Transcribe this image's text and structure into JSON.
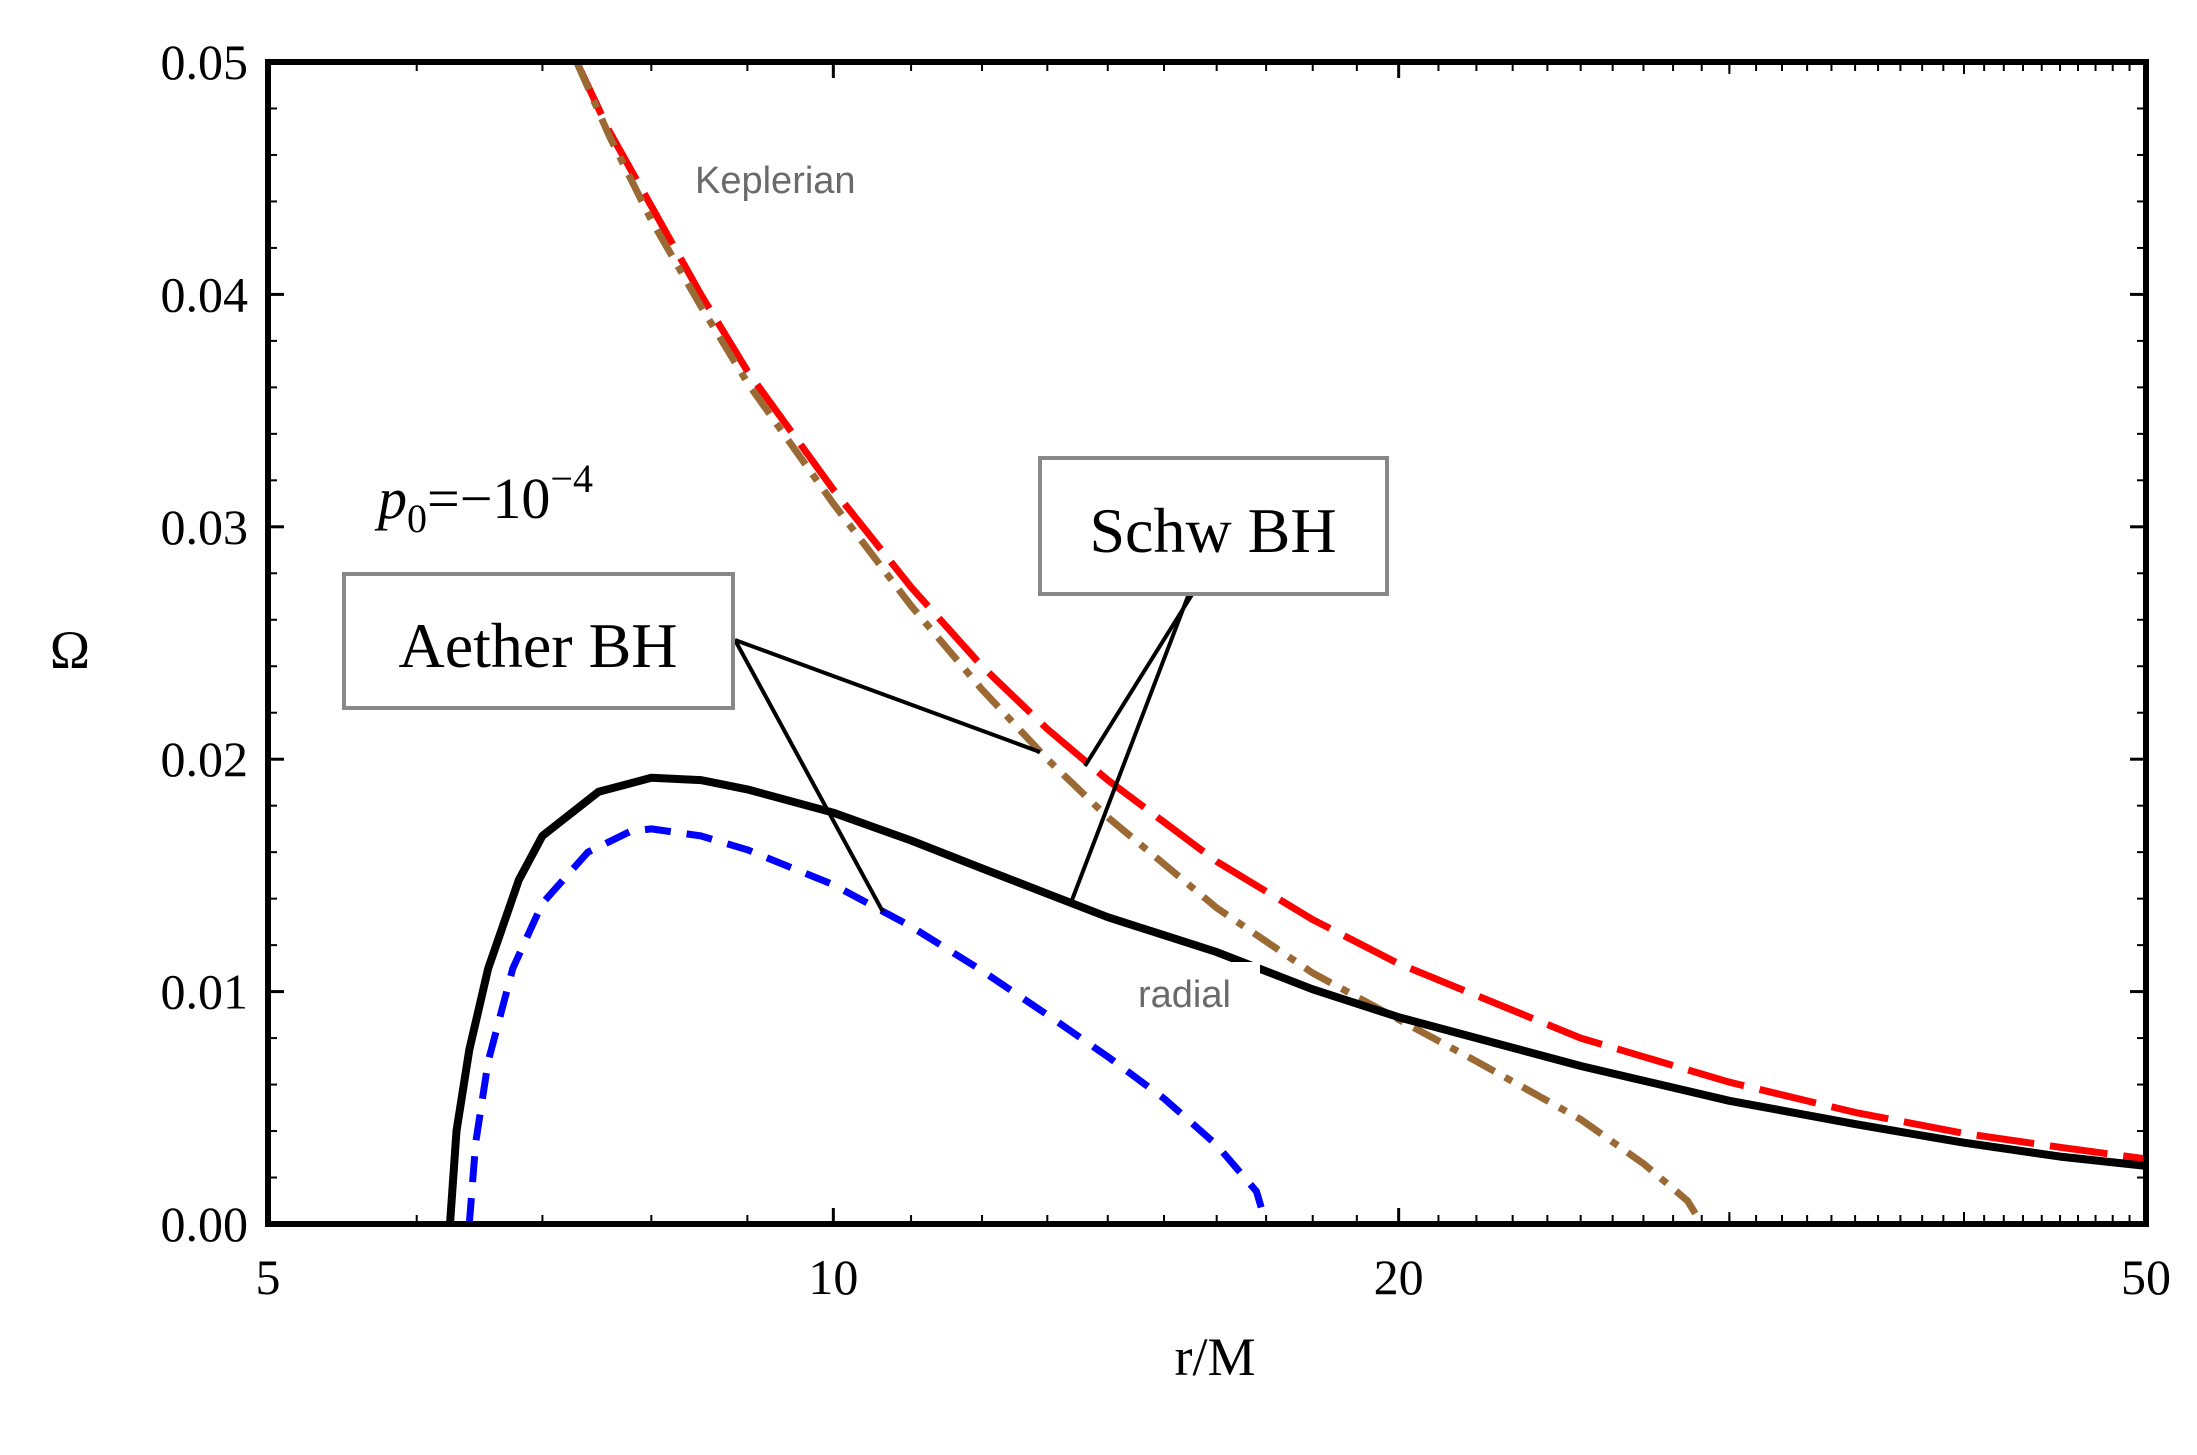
{
  "chart_data": {
    "type": "line",
    "xlabel": "r/M",
    "ylabel": "Ω",
    "xscale": "log",
    "xlim": [
      5,
      50
    ],
    "ylim": [
      0,
      0.05
    ],
    "xticks": [
      {
        "value": 5,
        "label": "5"
      },
      {
        "value": 10,
        "label": "10"
      },
      {
        "value": 20,
        "label": "20"
      },
      {
        "value": 50,
        "label": "50"
      }
    ],
    "yticks": [
      {
        "value": 0,
        "label": "0.00"
      },
      {
        "value": 0.01,
        "label": "0.01"
      },
      {
        "value": 0.02,
        "label": "0.02"
      },
      {
        "value": 0.03,
        "label": "0.03"
      },
      {
        "value": 0.04,
        "label": "0.04"
      },
      {
        "value": 0.05,
        "label": "0.05"
      }
    ],
    "grid": false,
    "series": [
      {
        "style": "long-dash",
        "color": "#ff0000",
        "points": [
          [
            7.3,
            0.05
          ],
          [
            7.6,
            0.047
          ],
          [
            8.0,
            0.0438
          ],
          [
            8.5,
            0.04
          ],
          [
            9.0,
            0.0367
          ],
          [
            10.0,
            0.0316
          ],
          [
            11.0,
            0.0274
          ],
          [
            12.0,
            0.024
          ],
          [
            13.0,
            0.0213
          ],
          [
            14.0,
            0.0191
          ],
          [
            16.0,
            0.0156
          ],
          [
            18.0,
            0.0131
          ],
          [
            20.0,
            0.0112
          ],
          [
            25.0,
            0.008
          ],
          [
            30.0,
            0.0061
          ],
          [
            35.0,
            0.0048
          ],
          [
            40.0,
            0.0039
          ],
          [
            45.0,
            0.0033
          ],
          [
            50.0,
            0.0028
          ]
        ]
      },
      {
        "style": "dash-dot",
        "color": "#9b6a34",
        "points": [
          [
            7.3,
            0.05
          ],
          [
            7.6,
            0.0468
          ],
          [
            8.0,
            0.0432
          ],
          [
            8.5,
            0.0395
          ],
          [
            9.0,
            0.0362
          ],
          [
            10.0,
            0.031
          ],
          [
            11.0,
            0.0266
          ],
          [
            12.0,
            0.023
          ],
          [
            13.0,
            0.02
          ],
          [
            14.0,
            0.0175
          ],
          [
            16.0,
            0.0136
          ],
          [
            18.0,
            0.0108
          ],
          [
            20.0,
            0.0088
          ],
          [
            22.0,
            0.007
          ],
          [
            25.0,
            0.0045
          ],
          [
            27.0,
            0.0026
          ],
          [
            28.5,
            0.001
          ],
          [
            29.0,
            0.0
          ]
        ]
      },
      {
        "style": "solid",
        "color": "#000000",
        "points": [
          [
            6.25,
            0.0
          ],
          [
            6.3,
            0.004
          ],
          [
            6.4,
            0.0075
          ],
          [
            6.55,
            0.011
          ],
          [
            6.8,
            0.0148
          ],
          [
            7.0,
            0.0167
          ],
          [
            7.5,
            0.0186
          ],
          [
            8.0,
            0.0192
          ],
          [
            8.5,
            0.0191
          ],
          [
            9.0,
            0.0187
          ],
          [
            10.0,
            0.0177
          ],
          [
            11.0,
            0.0165
          ],
          [
            12.0,
            0.0153
          ],
          [
            14.0,
            0.0132
          ],
          [
            16.0,
            0.0117
          ],
          [
            18.0,
            0.0101
          ],
          [
            20.0,
            0.0089
          ],
          [
            25.0,
            0.0068
          ],
          [
            30.0,
            0.0053
          ],
          [
            35.0,
            0.0043
          ],
          [
            40.0,
            0.0035
          ],
          [
            45.0,
            0.0029
          ],
          [
            50.0,
            0.0025
          ]
        ]
      },
      {
        "style": "short-dash",
        "color": "#0000ff",
        "points": [
          [
            6.4,
            0.0
          ],
          [
            6.45,
            0.0035
          ],
          [
            6.55,
            0.007
          ],
          [
            6.75,
            0.011
          ],
          [
            7.0,
            0.0138
          ],
          [
            7.4,
            0.016
          ],
          [
            7.8,
            0.0169
          ],
          [
            8.0,
            0.017
          ],
          [
            8.5,
            0.0167
          ],
          [
            9.0,
            0.0161
          ],
          [
            10.0,
            0.0146
          ],
          [
            11.0,
            0.0128
          ],
          [
            12.0,
            0.0109
          ],
          [
            13.0,
            0.009
          ],
          [
            14.0,
            0.0072
          ],
          [
            15.0,
            0.0054
          ],
          [
            16.0,
            0.0034
          ],
          [
            16.8,
            0.0014
          ],
          [
            17.0,
            0.0
          ]
        ]
      }
    ],
    "annotations": {
      "keplerian": "Keplerian",
      "radial": "radial",
      "schw_box": "Schw BH",
      "aether_box": "Aether BH",
      "param_base": "p",
      "param_sub": "0",
      "param_eq": "=−10",
      "param_exp": "−4"
    }
  }
}
